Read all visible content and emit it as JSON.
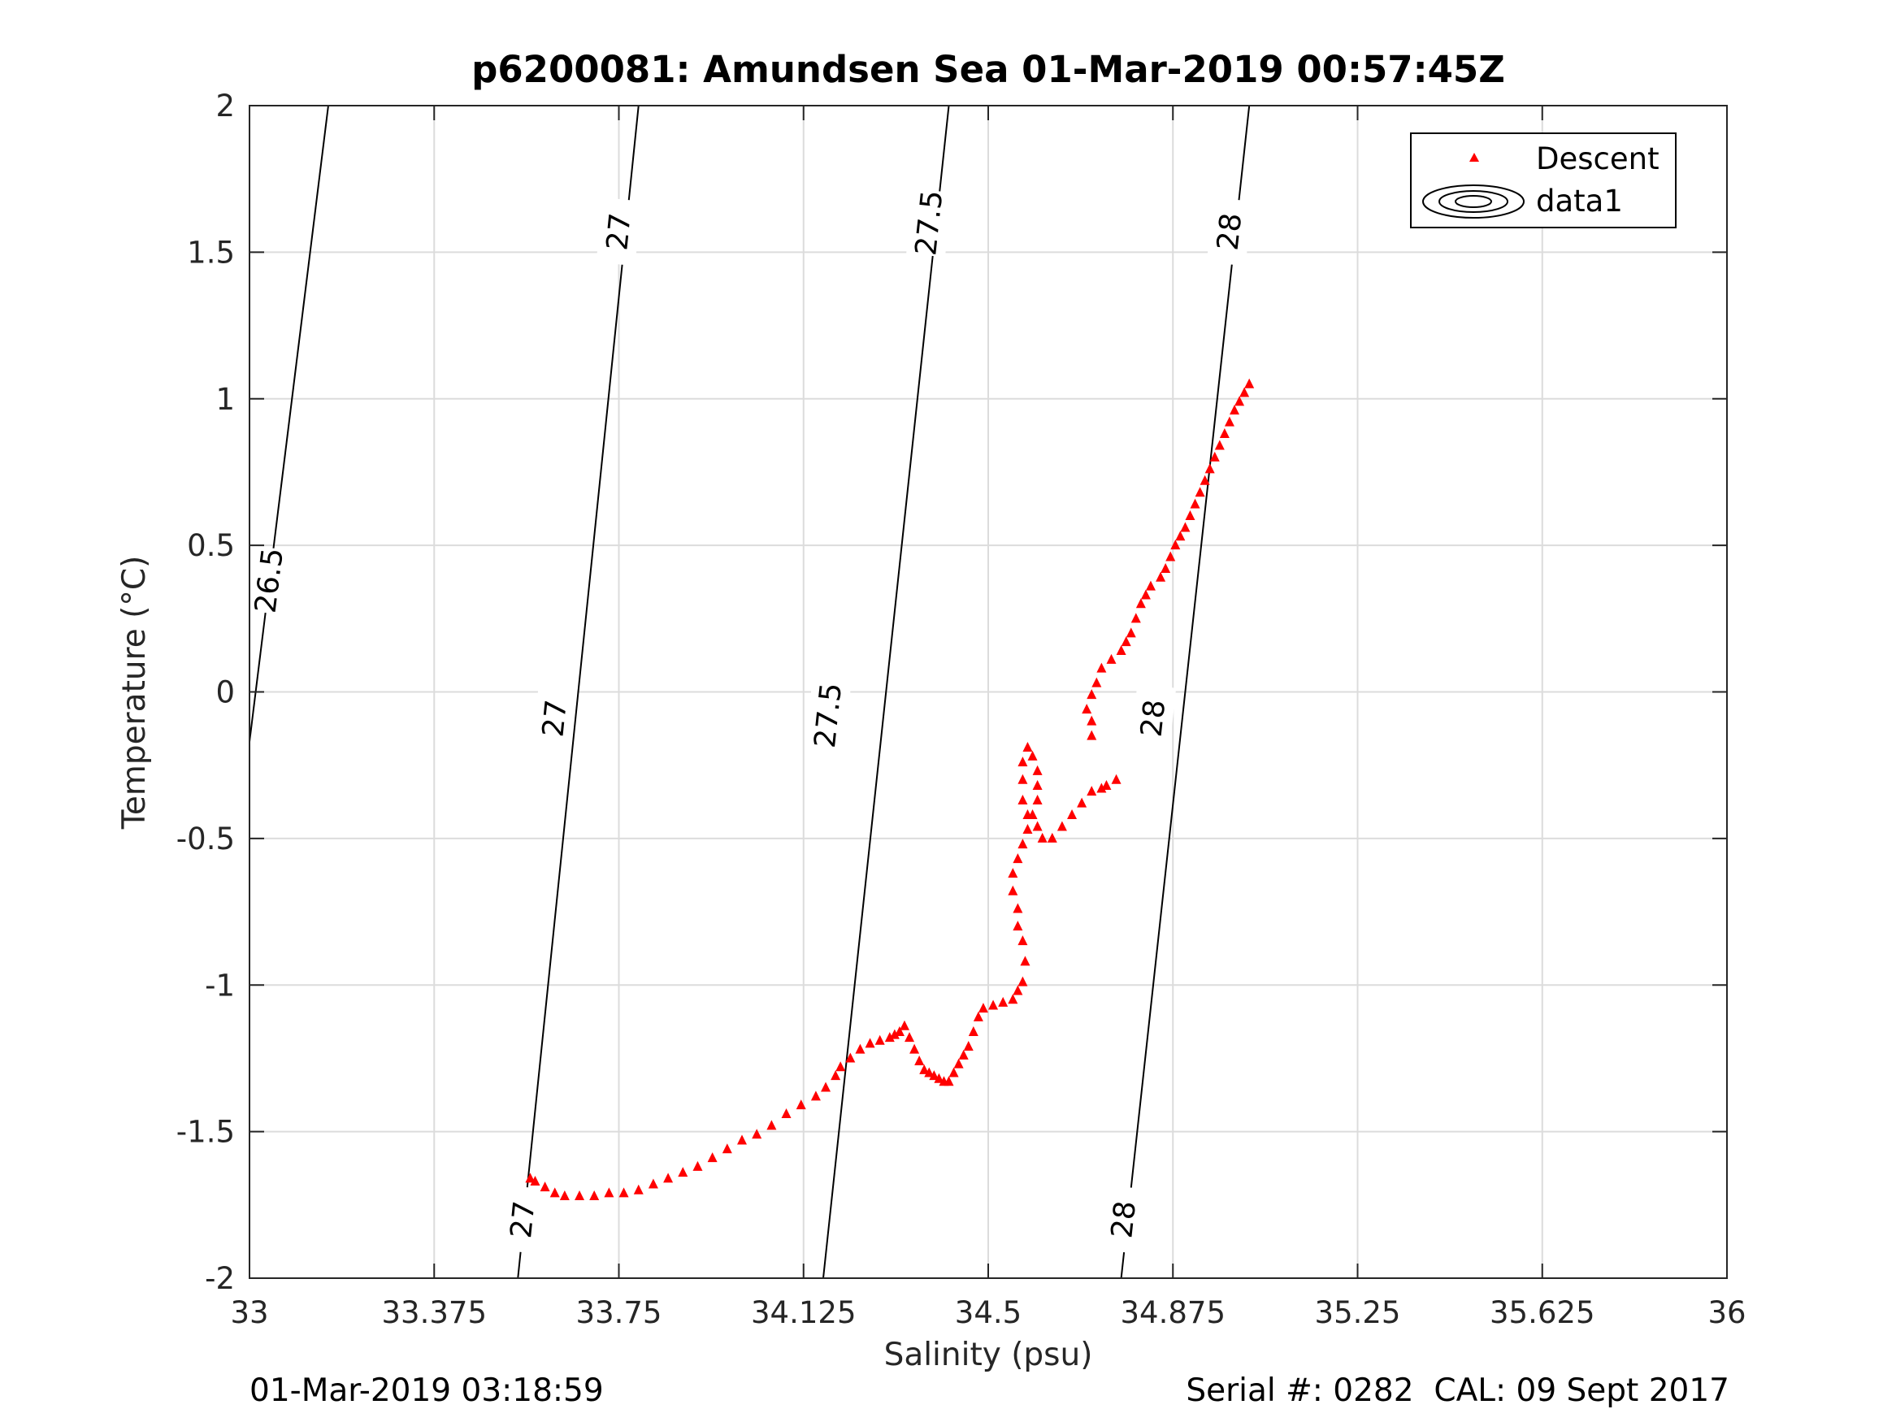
{
  "chart_data": {
    "type": "scatter",
    "title": "p6200081: Amundsen Sea 01-Mar-2019 00:57:45Z",
    "xlabel": "Salinity (psu)",
    "ylabel": "Temperature (°C)",
    "xlim": [
      33,
      36
    ],
    "ylim": [
      -2,
      2
    ],
    "xticks": [
      33,
      33.375,
      33.75,
      34.125,
      34.5,
      34.875,
      35.25,
      35.625,
      36
    ],
    "xtick_labels": [
      "33",
      "33.375",
      "33.75",
      "34.125",
      "34.5",
      "34.875",
      "35.25",
      "35.625",
      "36"
    ],
    "yticks": [
      2,
      1.5,
      1,
      0.5,
      0,
      -0.5,
      -1,
      -1.5,
      -2
    ],
    "ytick_labels": [
      "2",
      "1.5",
      "1",
      "0.5",
      "0",
      "-0.5",
      "-1",
      "-1.5",
      "-2"
    ],
    "grid": true,
    "legend": {
      "placement": "top-right",
      "entries": [
        {
          "label": "Descent",
          "marker": "triangle",
          "color": "#ff0000"
        },
        {
          "label": "data1",
          "marker": "contour",
          "color": "#000000"
        }
      ]
    },
    "series": [
      {
        "name": "Descent",
        "marker": "triangle",
        "color": "#ff0000",
        "points": [
          [
            33.57,
            -1.66
          ],
          [
            33.58,
            -1.67
          ],
          [
            33.6,
            -1.69
          ],
          [
            33.62,
            -1.71
          ],
          [
            33.64,
            -1.72
          ],
          [
            33.67,
            -1.72
          ],
          [
            33.7,
            -1.72
          ],
          [
            33.73,
            -1.71
          ],
          [
            33.76,
            -1.71
          ],
          [
            33.79,
            -1.7
          ],
          [
            33.82,
            -1.68
          ],
          [
            33.85,
            -1.66
          ],
          [
            33.88,
            -1.64
          ],
          [
            33.91,
            -1.62
          ],
          [
            33.94,
            -1.59
          ],
          [
            33.97,
            -1.56
          ],
          [
            34.0,
            -1.53
          ],
          [
            34.03,
            -1.51
          ],
          [
            34.06,
            -1.48
          ],
          [
            34.09,
            -1.44
          ],
          [
            34.12,
            -1.41
          ],
          [
            34.15,
            -1.38
          ],
          [
            34.17,
            -1.35
          ],
          [
            34.19,
            -1.31
          ],
          [
            34.2,
            -1.28
          ],
          [
            34.22,
            -1.25
          ],
          [
            34.24,
            -1.22
          ],
          [
            34.26,
            -1.2
          ],
          [
            34.28,
            -1.19
          ],
          [
            34.3,
            -1.18
          ],
          [
            34.31,
            -1.17
          ],
          [
            34.32,
            -1.16
          ],
          [
            34.33,
            -1.14
          ],
          [
            34.34,
            -1.18
          ],
          [
            34.35,
            -1.22
          ],
          [
            34.36,
            -1.26
          ],
          [
            34.37,
            -1.29
          ],
          [
            34.38,
            -1.3
          ],
          [
            34.39,
            -1.31
          ],
          [
            34.4,
            -1.32
          ],
          [
            34.41,
            -1.33
          ],
          [
            34.42,
            -1.33
          ],
          [
            34.43,
            -1.3
          ],
          [
            34.44,
            -1.27
          ],
          [
            34.45,
            -1.24
          ],
          [
            34.46,
            -1.21
          ],
          [
            34.47,
            -1.16
          ],
          [
            34.48,
            -1.11
          ],
          [
            34.49,
            -1.08
          ],
          [
            34.51,
            -1.07
          ],
          [
            34.53,
            -1.06
          ],
          [
            34.55,
            -1.05
          ],
          [
            34.56,
            -1.02
          ],
          [
            34.57,
            -0.99
          ],
          [
            34.575,
            -0.92
          ],
          [
            34.57,
            -0.85
          ],
          [
            34.56,
            -0.8
          ],
          [
            34.56,
            -0.74
          ],
          [
            34.55,
            -0.68
          ],
          [
            34.55,
            -0.62
          ],
          [
            34.56,
            -0.57
          ],
          [
            34.57,
            -0.52
          ],
          [
            34.58,
            -0.47
          ],
          [
            34.58,
            -0.42
          ],
          [
            34.57,
            -0.37
          ],
          [
            34.57,
            -0.3
          ],
          [
            34.57,
            -0.24
          ],
          [
            34.58,
            -0.19
          ],
          [
            34.59,
            -0.22
          ],
          [
            34.6,
            -0.27
          ],
          [
            34.6,
            -0.32
          ],
          [
            34.6,
            -0.37
          ],
          [
            34.59,
            -0.42
          ],
          [
            34.6,
            -0.46
          ],
          [
            34.61,
            -0.5
          ],
          [
            34.63,
            -0.5
          ],
          [
            34.65,
            -0.46
          ],
          [
            34.67,
            -0.42
          ],
          [
            34.69,
            -0.38
          ],
          [
            34.71,
            -0.34
          ],
          [
            34.73,
            -0.33
          ],
          [
            34.74,
            -0.32
          ],
          [
            34.76,
            -0.3
          ],
          [
            34.71,
            -0.15
          ],
          [
            34.71,
            -0.1
          ],
          [
            34.7,
            -0.06
          ],
          [
            34.71,
            -0.01
          ],
          [
            34.72,
            0.03
          ],
          [
            34.73,
            0.08
          ],
          [
            34.75,
            0.11
          ],
          [
            34.77,
            0.14
          ],
          [
            34.78,
            0.17
          ],
          [
            34.79,
            0.2
          ],
          [
            34.8,
            0.25
          ],
          [
            34.81,
            0.3
          ],
          [
            34.82,
            0.33
          ],
          [
            34.83,
            0.36
          ],
          [
            34.85,
            0.39
          ],
          [
            34.86,
            0.42
          ],
          [
            34.87,
            0.46
          ],
          [
            34.88,
            0.5
          ],
          [
            34.89,
            0.53
          ],
          [
            34.9,
            0.56
          ],
          [
            34.91,
            0.6
          ],
          [
            34.92,
            0.64
          ],
          [
            34.93,
            0.68
          ],
          [
            34.94,
            0.72
          ],
          [
            34.95,
            0.76
          ],
          [
            34.96,
            0.8
          ],
          [
            34.97,
            0.84
          ],
          [
            34.98,
            0.88
          ],
          [
            34.99,
            0.92
          ],
          [
            35.0,
            0.96
          ],
          [
            35.01,
            0.99
          ],
          [
            35.02,
            1.02
          ],
          [
            35.03,
            1.05
          ]
        ]
      },
      {
        "name": "data1",
        "type": "contour",
        "color": "#000000",
        "lines": [
          {
            "level": "26.5",
            "from": [
              33.0,
              -0.17
            ],
            "to": [
              33.16,
              2.0
            ],
            "labels": [
              {
                "x": 33.04,
                "y": 0.38
              }
            ]
          },
          {
            "level": "27",
            "from": [
              33.545,
              -2.0
            ],
            "to": [
              33.79,
              2.0
            ],
            "labels": [
              {
                "x": 33.555,
                "y": -1.8
              },
              {
                "x": 33.62,
                "y": -0.09
              },
              {
                "x": 33.75,
                "y": 1.57
              }
            ]
          },
          {
            "level": "27.5",
            "from": [
              34.165,
              -2.0
            ],
            "to": [
              34.42,
              2.0
            ],
            "labels": [
              {
                "x": 34.175,
                "y": -0.08
              },
              {
                "x": 34.38,
                "y": 1.6
              }
            ]
          },
          {
            "level": "28",
            "from": [
              34.77,
              -2.0
            ],
            "to": [
              35.03,
              2.0
            ],
            "labels": [
              {
                "x": 34.775,
                "y": -1.8
              },
              {
                "x": 34.835,
                "y": -0.09
              },
              {
                "x": 34.99,
                "y": 1.57
              }
            ]
          }
        ]
      }
    ]
  },
  "footer": {
    "timestamp": "01-Mar-2019 03:18:59",
    "serial_cal": "Serial #: 0282  CAL: 09 Sept 2017"
  }
}
